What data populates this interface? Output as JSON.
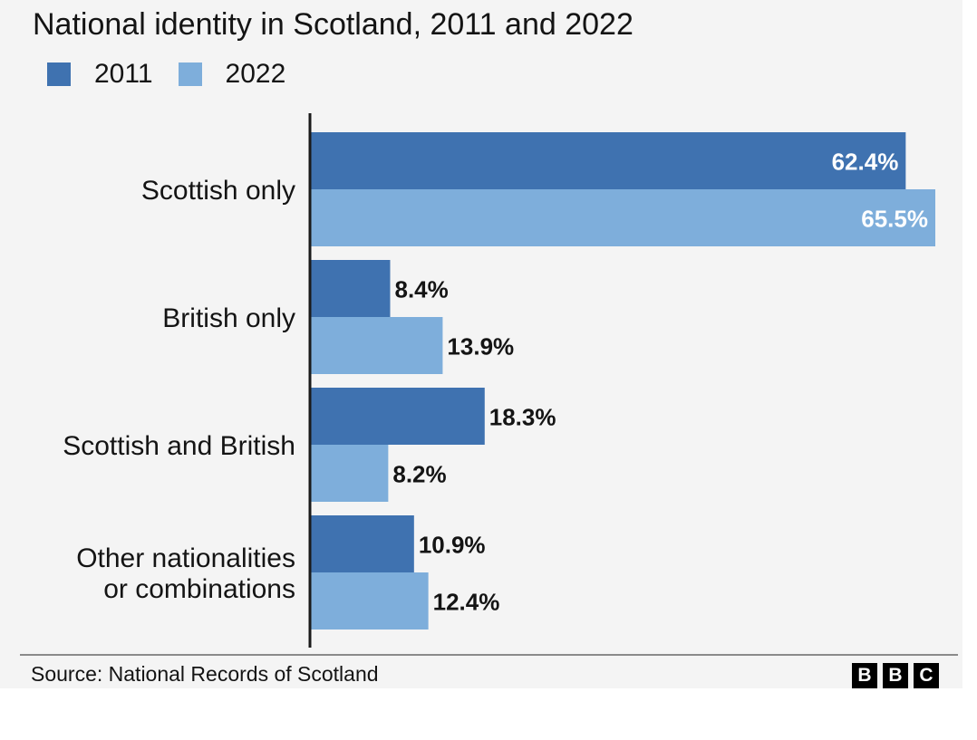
{
  "chart_data": {
    "type": "bar",
    "orientation": "horizontal",
    "title": "National identity in Scotland, 2011 and 2022",
    "categories": [
      "Scottish only",
      "British only",
      "Scottish and British",
      "Other nationalities or combinations"
    ],
    "category_lines": [
      [
        "Scottish only"
      ],
      [
        "British only"
      ],
      [
        "Scottish and British"
      ],
      [
        "Other nationalities",
        "or combinations"
      ]
    ],
    "series": [
      {
        "name": "2011",
        "values": [
          62.4,
          8.4,
          18.3,
          10.9
        ],
        "labels": [
          "62.4%",
          "8.4%",
          "18.3%",
          "10.9%"
        ]
      },
      {
        "name": "2022",
        "values": [
          65.5,
          13.9,
          8.2,
          12.4
        ],
        "labels": [
          "65.5%",
          "13.9%",
          "8.2%",
          "12.4%"
        ]
      }
    ],
    "xlim": [
      0,
      65.5
    ],
    "grid": false,
    "legend_position": "top-left",
    "data_labels": true
  },
  "colors": {
    "series_2011": "#3f72b0",
    "series_2022": "#7eaedb",
    "axis": "#1a1a1a",
    "text": "#141414"
  },
  "source": "Source: National Records of Scotland",
  "logo": {
    "letters": [
      "B",
      "B",
      "C"
    ],
    "name": "BBC"
  }
}
